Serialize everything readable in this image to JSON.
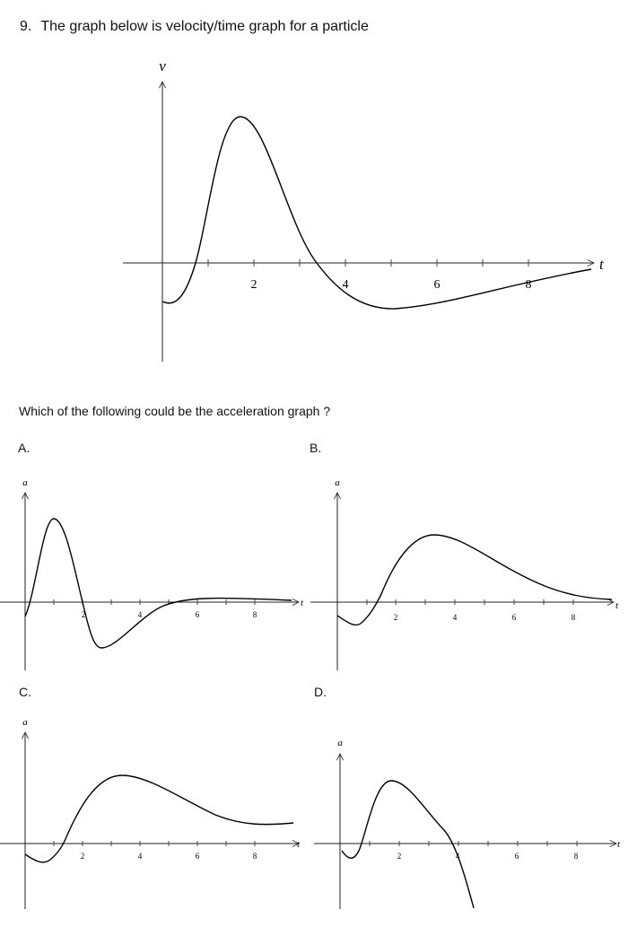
{
  "question": {
    "number": "9.",
    "text": "The graph below is velocity/time graph for a particle"
  },
  "prompt": "Which of the following could be the acceleration graph ?",
  "main_graph": {
    "y_label": "v",
    "x_label": "t",
    "tick_labels": [
      "2",
      "4",
      "6",
      "8"
    ]
  },
  "options": [
    {
      "label": "A.",
      "y_label": "a",
      "x_label": "t",
      "tick_labels": [
        "2",
        "4",
        "6",
        "8"
      ]
    },
    {
      "label": "B.",
      "y_label": "a",
      "x_label": "t",
      "tick_labels": [
        "2",
        "4",
        "6",
        "8"
      ]
    },
    {
      "label": "C.",
      "y_label": "a",
      "x_label": "t",
      "tick_labels": [
        "2",
        "4",
        "6",
        "8"
      ]
    },
    {
      "label": "D.",
      "y_label": "a",
      "x_label": "t",
      "tick_labels": [
        "2",
        "4",
        "6",
        "8"
      ]
    }
  ]
}
